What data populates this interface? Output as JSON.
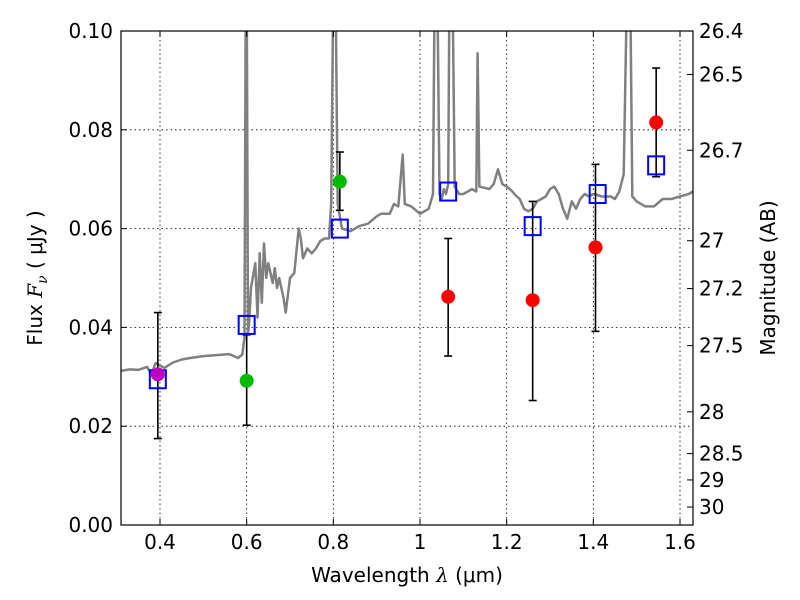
{
  "chart_data": {
    "type": "scatter",
    "title": "",
    "xlabel_parts": {
      "before": "Wavelength  ",
      "symbol": "λ",
      "after": " (μm)"
    },
    "ylabel_parts": {
      "before": "Flux  ",
      "symbol": "F",
      "subscript": "ν",
      "after": "  ( μJy )"
    },
    "y2label": "Magnitude (AB)",
    "xlim": [
      0.31,
      1.63
    ],
    "ylim": [
      0.0,
      0.1
    ],
    "grid": true,
    "x_ticks": [
      {
        "v": 0.4,
        "label": "0.4"
      },
      {
        "v": 0.6,
        "label": "0.6"
      },
      {
        "v": 0.8,
        "label": "0.8"
      },
      {
        "v": 1.0,
        "label": "1"
      },
      {
        "v": 1.2,
        "label": "1.2"
      },
      {
        "v": 1.4,
        "label": "1.4"
      },
      {
        "v": 1.6,
        "label": "1.6"
      }
    ],
    "y_ticks": [
      {
        "v": 0.0,
        "label": "0.00"
      },
      {
        "v": 0.02,
        "label": "0.02"
      },
      {
        "v": 0.04,
        "label": "0.04"
      },
      {
        "v": 0.06,
        "label": "0.06"
      },
      {
        "v": 0.08,
        "label": "0.08"
      },
      {
        "v": 0.1,
        "label": "0.10"
      }
    ],
    "mag_ticks": [
      {
        "mag": 26.4,
        "label": "26.4"
      },
      {
        "mag": 26.5,
        "label": "26.5"
      },
      {
        "mag": 26.7,
        "label": "26.7"
      },
      {
        "mag": 27,
        "label": "27"
      },
      {
        "mag": 27.2,
        "label": "27.2"
      },
      {
        "mag": 27.5,
        "label": "27.5"
      },
      {
        "mag": 28,
        "label": "28"
      },
      {
        "mag": 28.5,
        "label": "28.5"
      },
      {
        "mag": 29,
        "label": "29"
      },
      {
        "mag": 30,
        "label": "30"
      }
    ],
    "spectrum": {
      "name": "model spectrum",
      "color": "#808080",
      "points": [
        [
          0.31,
          0.0312
        ],
        [
          0.33,
          0.0315
        ],
        [
          0.35,
          0.0314
        ],
        [
          0.37,
          0.032
        ],
        [
          0.38,
          0.0305
        ],
        [
          0.39,
          0.0328
        ],
        [
          0.41,
          0.0318
        ],
        [
          0.43,
          0.0329
        ],
        [
          0.45,
          0.0335
        ],
        [
          0.47,
          0.0338
        ],
        [
          0.5,
          0.0342
        ],
        [
          0.53,
          0.0344
        ],
        [
          0.56,
          0.0346
        ],
        [
          0.58,
          0.0338
        ],
        [
          0.59,
          0.0345
        ],
        [
          0.595,
          0.038
        ],
        [
          0.598,
          0.11
        ],
        [
          0.6,
          0.11
        ],
        [
          0.603,
          0.039
        ],
        [
          0.605,
          0.04
        ],
        [
          0.61,
          0.048
        ],
        [
          0.62,
          0.053
        ],
        [
          0.625,
          0.042
        ],
        [
          0.63,
          0.055
        ],
        [
          0.635,
          0.045
        ],
        [
          0.64,
          0.057
        ],
        [
          0.645,
          0.05
        ],
        [
          0.65,
          0.053
        ],
        [
          0.66,
          0.049
        ],
        [
          0.665,
          0.052
        ],
        [
          0.67,
          0.048
        ],
        [
          0.675,
          0.05
        ],
        [
          0.685,
          0.046
        ],
        [
          0.69,
          0.043
        ],
        [
          0.7,
          0.05
        ],
        [
          0.71,
          0.051
        ],
        [
          0.72,
          0.06
        ],
        [
          0.725,
          0.058
        ],
        [
          0.73,
          0.054
        ],
        [
          0.74,
          0.056
        ],
        [
          0.75,
          0.055
        ],
        [
          0.76,
          0.056
        ],
        [
          0.77,
          0.0575
        ],
        [
          0.78,
          0.058
        ],
        [
          0.79,
          0.058
        ],
        [
          0.795,
          0.065
        ],
        [
          0.8,
          0.11
        ],
        [
          0.805,
          0.11
        ],
        [
          0.81,
          0.065
        ],
        [
          0.82,
          0.06
        ],
        [
          0.84,
          0.0595
        ],
        [
          0.86,
          0.0605
        ],
        [
          0.88,
          0.061
        ],
        [
          0.9,
          0.0625
        ],
        [
          0.91,
          0.063
        ],
        [
          0.93,
          0.063
        ],
        [
          0.94,
          0.065
        ],
        [
          0.95,
          0.0645
        ],
        [
          0.96,
          0.075
        ],
        [
          0.965,
          0.065
        ],
        [
          0.98,
          0.0645
        ],
        [
          1.0,
          0.063
        ],
        [
          1.02,
          0.064
        ],
        [
          1.03,
          0.067
        ],
        [
          1.034,
          0.11
        ],
        [
          1.04,
          0.11
        ],
        [
          1.045,
          0.067
        ],
        [
          1.05,
          0.066
        ],
        [
          1.055,
          0.068
        ],
        [
          1.06,
          0.067
        ],
        [
          1.065,
          0.069
        ],
        [
          1.068,
          0.11
        ],
        [
          1.075,
          0.11
        ],
        [
          1.08,
          0.0685
        ],
        [
          1.09,
          0.067
        ],
        [
          1.1,
          0.067
        ],
        [
          1.12,
          0.068
        ],
        [
          1.13,
          0.0675
        ],
        [
          1.133,
          0.0955
        ],
        [
          1.137,
          0.0685
        ],
        [
          1.16,
          0.068
        ],
        [
          1.17,
          0.069
        ],
        [
          1.18,
          0.072
        ],
        [
          1.19,
          0.069
        ],
        [
          1.2,
          0.0685
        ],
        [
          1.21,
          0.0678
        ],
        [
          1.22,
          0.0668
        ],
        [
          1.23,
          0.066
        ],
        [
          1.24,
          0.064
        ],
        [
          1.25,
          0.0635
        ],
        [
          1.26,
          0.064
        ],
        [
          1.27,
          0.0655
        ],
        [
          1.28,
          0.066
        ],
        [
          1.29,
          0.0665
        ],
        [
          1.3,
          0.068
        ],
        [
          1.31,
          0.0685
        ],
        [
          1.32,
          0.067
        ],
        [
          1.33,
          0.064
        ],
        [
          1.34,
          0.062
        ],
        [
          1.35,
          0.0655
        ],
        [
          1.36,
          0.064
        ],
        [
          1.37,
          0.066
        ],
        [
          1.38,
          0.067
        ],
        [
          1.39,
          0.0665
        ],
        [
          1.4,
          0.067
        ],
        [
          1.42,
          0.0665
        ],
        [
          1.44,
          0.0665
        ],
        [
          1.45,
          0.066
        ],
        [
          1.46,
          0.0675
        ],
        [
          1.47,
          0.071
        ],
        [
          1.478,
          0.11
        ],
        [
          1.485,
          0.11
        ],
        [
          1.49,
          0.0665
        ],
        [
          1.5,
          0.0655
        ],
        [
          1.52,
          0.0645
        ],
        [
          1.54,
          0.0645
        ],
        [
          1.56,
          0.066
        ],
        [
          1.58,
          0.066
        ],
        [
          1.6,
          0.0665
        ],
        [
          1.62,
          0.067
        ],
        [
          1.63,
          0.0675
        ]
      ]
    },
    "model_fluxes": {
      "name": "model band fluxes",
      "marker": "open-square",
      "color": "#0000ff",
      "points": [
        [
          0.395,
          0.0295
        ],
        [
          0.6,
          0.0405
        ],
        [
          0.815,
          0.06
        ],
        [
          1.065,
          0.0675
        ],
        [
          1.26,
          0.0605
        ],
        [
          1.41,
          0.067
        ],
        [
          1.545,
          0.0728
        ]
      ]
    },
    "observed": [
      {
        "name": "observed",
        "x": 0.395,
        "y": 0.0305,
        "yerr_low": 0.0175,
        "yerr_high": 0.043,
        "color": "#c000c0"
      },
      {
        "name": "observed",
        "x": 0.6,
        "y": 0.0292,
        "yerr_low": 0.0202,
        "yerr_high": 0.0385,
        "color": "#00bb00"
      },
      {
        "name": "observed",
        "x": 0.815,
        "y": 0.0695,
        "yerr_low": 0.0637,
        "yerr_high": 0.0755,
        "color": "#00bb00"
      },
      {
        "name": "observed",
        "x": 1.065,
        "y": 0.0462,
        "yerr_low": 0.0342,
        "yerr_high": 0.058,
        "color": "#ff0000"
      },
      {
        "name": "observed",
        "x": 1.26,
        "y": 0.0455,
        "yerr_low": 0.0252,
        "yerr_high": 0.0655,
        "color": "#ff0000"
      },
      {
        "name": "observed",
        "x": 1.405,
        "y": 0.0562,
        "yerr_low": 0.0392,
        "yerr_high": 0.073,
        "color": "#ff0000"
      },
      {
        "name": "observed",
        "x": 1.545,
        "y": 0.0815,
        "yerr_low": 0.0705,
        "yerr_high": 0.0925,
        "color": "#ff0000"
      }
    ]
  }
}
